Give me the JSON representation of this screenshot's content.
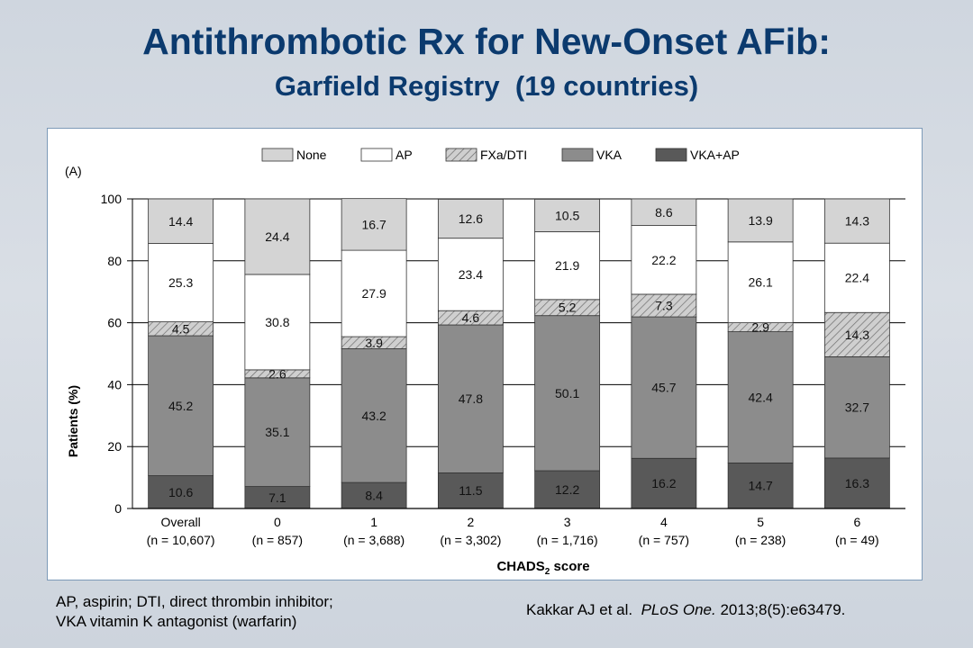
{
  "slide": {
    "title": "Antithrombotic Rx for New-Onset AFib:",
    "subtitle": "Garfield Registry  (19 countries)",
    "footnote_line1": "AP, aspirin; DTI, direct thrombin inhibitor;",
    "footnote_line2": "VKA vitamin K antagonist (warfarin)",
    "citation_authors": "Kakkar AJ et al.  ",
    "citation_journal": "PLoS One.",
    "citation_rest": " 2013;8(5):e63479."
  },
  "chart_data": {
    "type": "bar",
    "stacked": true,
    "panel_label": "(A)",
    "xlabel_main": "CHADS",
    "xlabel_sub": "2",
    "xlabel_rest": " score",
    "ylabel": "Patients (%)",
    "ylim": [
      0,
      100
    ],
    "yticks": [
      0,
      20,
      40,
      60,
      80,
      100
    ],
    "legend_position": "top",
    "categories": [
      "Overall",
      "0",
      "1",
      "2",
      "3",
      "4",
      "5",
      "6"
    ],
    "category_n": [
      "(n = 10,607)",
      "(n = 857)",
      "(n = 3,688)",
      "(n = 3,302)",
      "(n = 1,716)",
      "(n = 757)",
      "(n = 238)",
      "(n = 49)"
    ],
    "series": [
      {
        "name": "VKA+AP",
        "color": "#595959",
        "pattern": "solid",
        "values": [
          10.6,
          7.1,
          8.4,
          11.5,
          12.2,
          16.2,
          14.7,
          16.3
        ]
      },
      {
        "name": "VKA",
        "color": "#8c8c8c",
        "pattern": "solid",
        "values": [
          45.2,
          35.1,
          43.2,
          47.8,
          50.1,
          45.7,
          42.4,
          32.7
        ]
      },
      {
        "name": "FXa/DTI",
        "color": "#c8c8c8",
        "pattern": "hatched",
        "values": [
          4.5,
          2.6,
          3.9,
          4.6,
          5.2,
          7.3,
          2.9,
          14.3
        ]
      },
      {
        "name": "AP",
        "color": "#ffffff",
        "pattern": "solid",
        "values": [
          25.3,
          30.8,
          27.9,
          23.4,
          21.9,
          22.2,
          26.1,
          22.4
        ]
      },
      {
        "name": "None",
        "color": "#d4d4d4",
        "pattern": "solid",
        "values": [
          14.4,
          24.4,
          16.7,
          12.6,
          10.5,
          8.6,
          13.9,
          14.3
        ]
      }
    ],
    "legend_order": [
      "None",
      "AP",
      "FXa/DTI",
      "VKA",
      "VKA+AP"
    ]
  }
}
